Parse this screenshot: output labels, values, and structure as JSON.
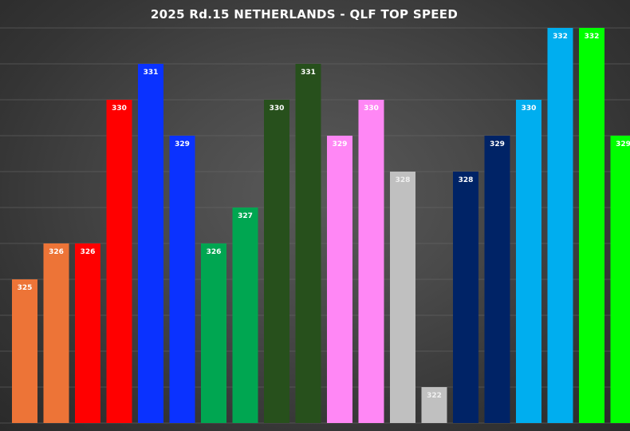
{
  "chart_data": {
    "type": "bar",
    "title": "2025 Rd.15 NETHERLANDS - QLF TOP SPEED",
    "xlabel": "",
    "ylabel": "",
    "ylim": [
      321,
      333
    ],
    "grid": true,
    "values": [
      325,
      326,
      326,
      330,
      331,
      329,
      326,
      327,
      330,
      331,
      329,
      330,
      328,
      322,
      328,
      329,
      330,
      332,
      332,
      329
    ],
    "colors": [
      "#ED7437",
      "#ED7437",
      "#FF0000",
      "#FF0000",
      "#0A32FF",
      "#0A32FF",
      "#00A651",
      "#00A651",
      "#27501C",
      "#27501C",
      "#FF87F5",
      "#FF87F5",
      "#C0C0C0",
      "#C0C0C0",
      "#002366",
      "#002366",
      "#00AEEF",
      "#00AEEF",
      "#00FF00",
      "#00FF00"
    ],
    "label_colors": [
      "#FFFFFF",
      "#FFFFFF",
      "#FFFFFF",
      "#FFFFFF",
      "#FFFFFF",
      "#FFFFFF",
      "#FFFFFF",
      "#FFFFFF",
      "#FFFFFF",
      "#FFFFFF",
      "#FFFFFF",
      "#FFFFFF",
      "#F0F0F0",
      "#F0F0F0",
      "#FFFFFF",
      "#FFFFFF",
      "#FFFFFF",
      "#FFFFFF",
      "#FFFFFF",
      "#FFFFFF"
    ]
  }
}
